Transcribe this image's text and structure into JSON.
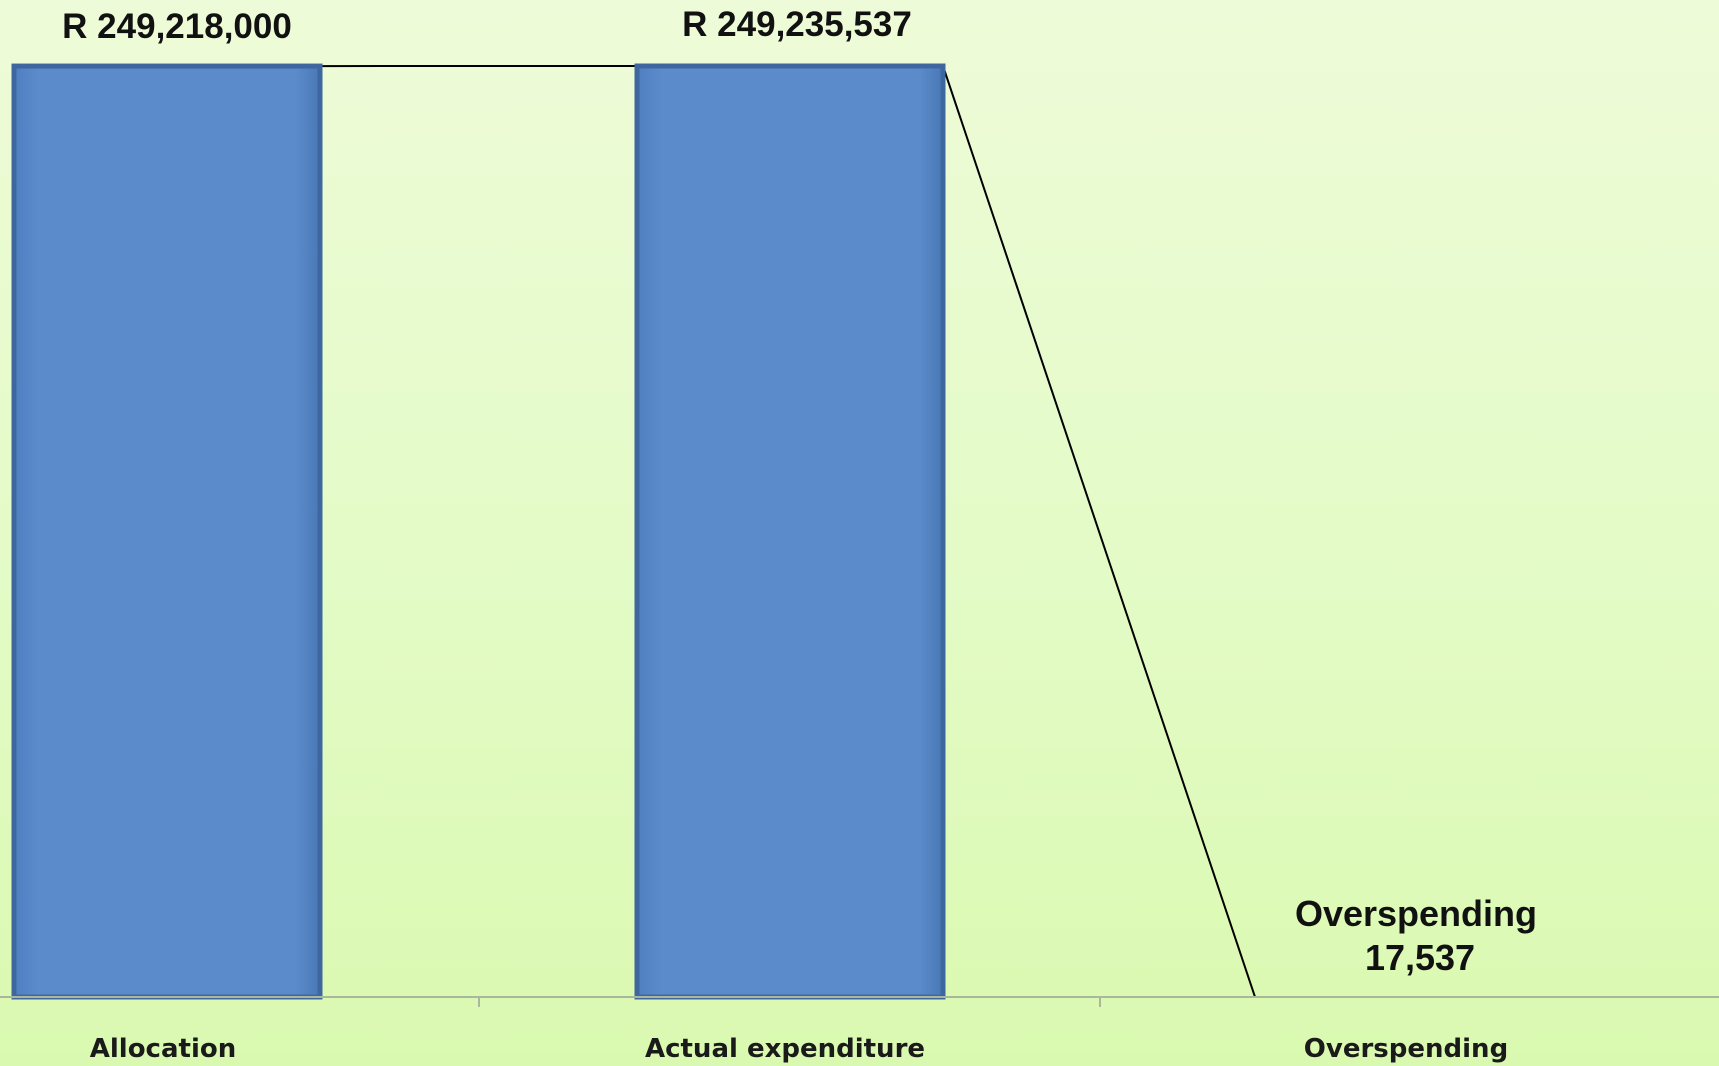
{
  "chart_data": {
    "type": "bar",
    "title": "",
    "xlabel": "",
    "ylabel": "",
    "categories": [
      "Allocation",
      "Actual expenditure",
      "Overspending"
    ],
    "values": [
      249218000,
      249235537,
      17537
    ],
    "data_labels": [
      "R 249,218,000",
      "R 249,235,537",
      "Overspending\n17,537"
    ],
    "overspending_label_line1": "Overspending",
    "overspending_label_line2": "17,537",
    "ylim": [
      0,
      249235537
    ],
    "grid": false,
    "legend": "none",
    "bar_color": "#5b8bcb",
    "bar_edge_color": "#3f679f",
    "connector_color": "#000000",
    "background_colors": [
      "#eefbd8",
      "#daf9b0"
    ]
  }
}
